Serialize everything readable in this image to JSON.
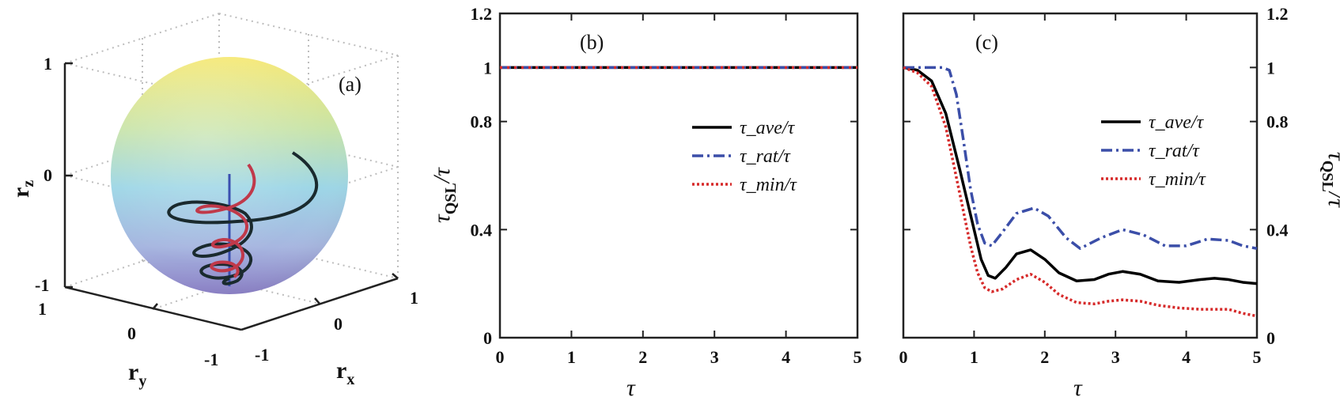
{
  "chart_data": [
    {
      "panel": "(a)",
      "type": "line3d",
      "xlabel": "r",
      "xlabel_sub": "x",
      "ylabel": "r",
      "ylabel_sub": "y",
      "zlabel": "r",
      "zlabel_sub": "z",
      "x_ticks": [
        "-1",
        "0",
        "1"
      ],
      "y_ticks": [
        "1",
        "0",
        "-1"
      ],
      "z_ticks": [
        "1",
        "0",
        "-1"
      ],
      "xlim": [
        -1,
        1
      ],
      "ylim": [
        -1,
        1
      ],
      "zlim": [
        -1,
        1
      ],
      "grid": true,
      "colors": {
        "sphere_top": "#f6e873",
        "sphere_mid": "#9dd6e6",
        "sphere_bottom": "#8a7fc6",
        "black_spiral": "#1a2a2e",
        "red_spiral": "#c0394a",
        "axis_line": "#3a4fb0"
      }
    },
    {
      "panel": "(b)",
      "type": "line",
      "xlabel": "τ",
      "ylabel": "τ",
      "ylabel_sub": "QSL",
      "ylabel_suffix": "/τ",
      "xlim": [
        0,
        5
      ],
      "ylim": [
        0,
        1.2
      ],
      "x_ticks": [
        "0",
        "1",
        "2",
        "3",
        "4",
        "5"
      ],
      "y_ticks": [
        "0",
        "0.4",
        "0.8",
        "1",
        "1.2"
      ],
      "legend_position": "right",
      "series": [
        {
          "name": "τ_ave/τ",
          "style": "solid",
          "color": "#000000",
          "x": [
            0,
            5
          ],
          "y": [
            1,
            1
          ]
        },
        {
          "name": "τ_rat/τ",
          "style": "dashdot",
          "color": "#3b4ea8",
          "x": [
            0,
            5
          ],
          "y": [
            1,
            1
          ]
        },
        {
          "name": "τ_min/τ",
          "style": "dotted",
          "color": "#d62a2a",
          "x": [
            0,
            5
          ],
          "y": [
            1,
            1
          ]
        }
      ]
    },
    {
      "panel": "(c)",
      "type": "line",
      "xlabel": "τ",
      "ylabel": "τ",
      "ylabel_sub": "QSL",
      "ylabel_suffix": "/τ",
      "xlim": [
        0,
        5
      ],
      "ylim": [
        0,
        1.2
      ],
      "x_ticks": [
        "0",
        "1",
        "2",
        "3",
        "4",
        "5"
      ],
      "y_ticks": [
        "0",
        "0.4",
        "0.8",
        "1",
        "1.2"
      ],
      "legend_position": "right",
      "series": [
        {
          "name": "τ_ave/τ",
          "style": "solid",
          "color": "#000000",
          "x": [
            0,
            0.2,
            0.4,
            0.6,
            0.8,
            1.0,
            1.1,
            1.2,
            1.3,
            1.45,
            1.6,
            1.8,
            2.0,
            2.2,
            2.45,
            2.7,
            2.9,
            3.1,
            3.35,
            3.6,
            3.9,
            4.2,
            4.4,
            4.6,
            4.8,
            5.0
          ],
          "y": [
            1.0,
            0.99,
            0.95,
            0.83,
            0.62,
            0.4,
            0.29,
            0.23,
            0.22,
            0.26,
            0.31,
            0.325,
            0.29,
            0.24,
            0.21,
            0.215,
            0.235,
            0.245,
            0.235,
            0.21,
            0.205,
            0.215,
            0.22,
            0.215,
            0.205,
            0.2
          ]
        },
        {
          "name": "τ_rat/τ",
          "style": "dashdot",
          "color": "#3b4ea8",
          "x": [
            0,
            0.3,
            0.55,
            0.65,
            0.75,
            0.85,
            0.95,
            1.05,
            1.15,
            1.25,
            1.4,
            1.6,
            1.85,
            2.05,
            2.3,
            2.5,
            2.8,
            3.1,
            3.4,
            3.7,
            4.0,
            4.3,
            4.6,
            4.8,
            5.0
          ],
          "y": [
            1.0,
            1.0,
            1.0,
            0.99,
            0.9,
            0.73,
            0.55,
            0.42,
            0.35,
            0.34,
            0.39,
            0.46,
            0.48,
            0.45,
            0.37,
            0.33,
            0.37,
            0.4,
            0.38,
            0.34,
            0.34,
            0.365,
            0.36,
            0.34,
            0.33
          ]
        },
        {
          "name": "τ_min/τ",
          "style": "dotted",
          "color": "#d62a2a",
          "x": [
            0,
            0.2,
            0.4,
            0.6,
            0.8,
            0.95,
            1.05,
            1.15,
            1.25,
            1.4,
            1.6,
            1.8,
            2.0,
            2.2,
            2.45,
            2.7,
            2.9,
            3.1,
            3.35,
            3.6,
            3.9,
            4.2,
            4.4,
            4.6,
            4.8,
            5.0
          ],
          "y": [
            1.0,
            0.98,
            0.93,
            0.78,
            0.53,
            0.34,
            0.24,
            0.185,
            0.17,
            0.18,
            0.215,
            0.235,
            0.205,
            0.16,
            0.13,
            0.125,
            0.135,
            0.14,
            0.135,
            0.12,
            0.11,
            0.105,
            0.105,
            0.105,
            0.09,
            0.08
          ]
        }
      ]
    }
  ]
}
